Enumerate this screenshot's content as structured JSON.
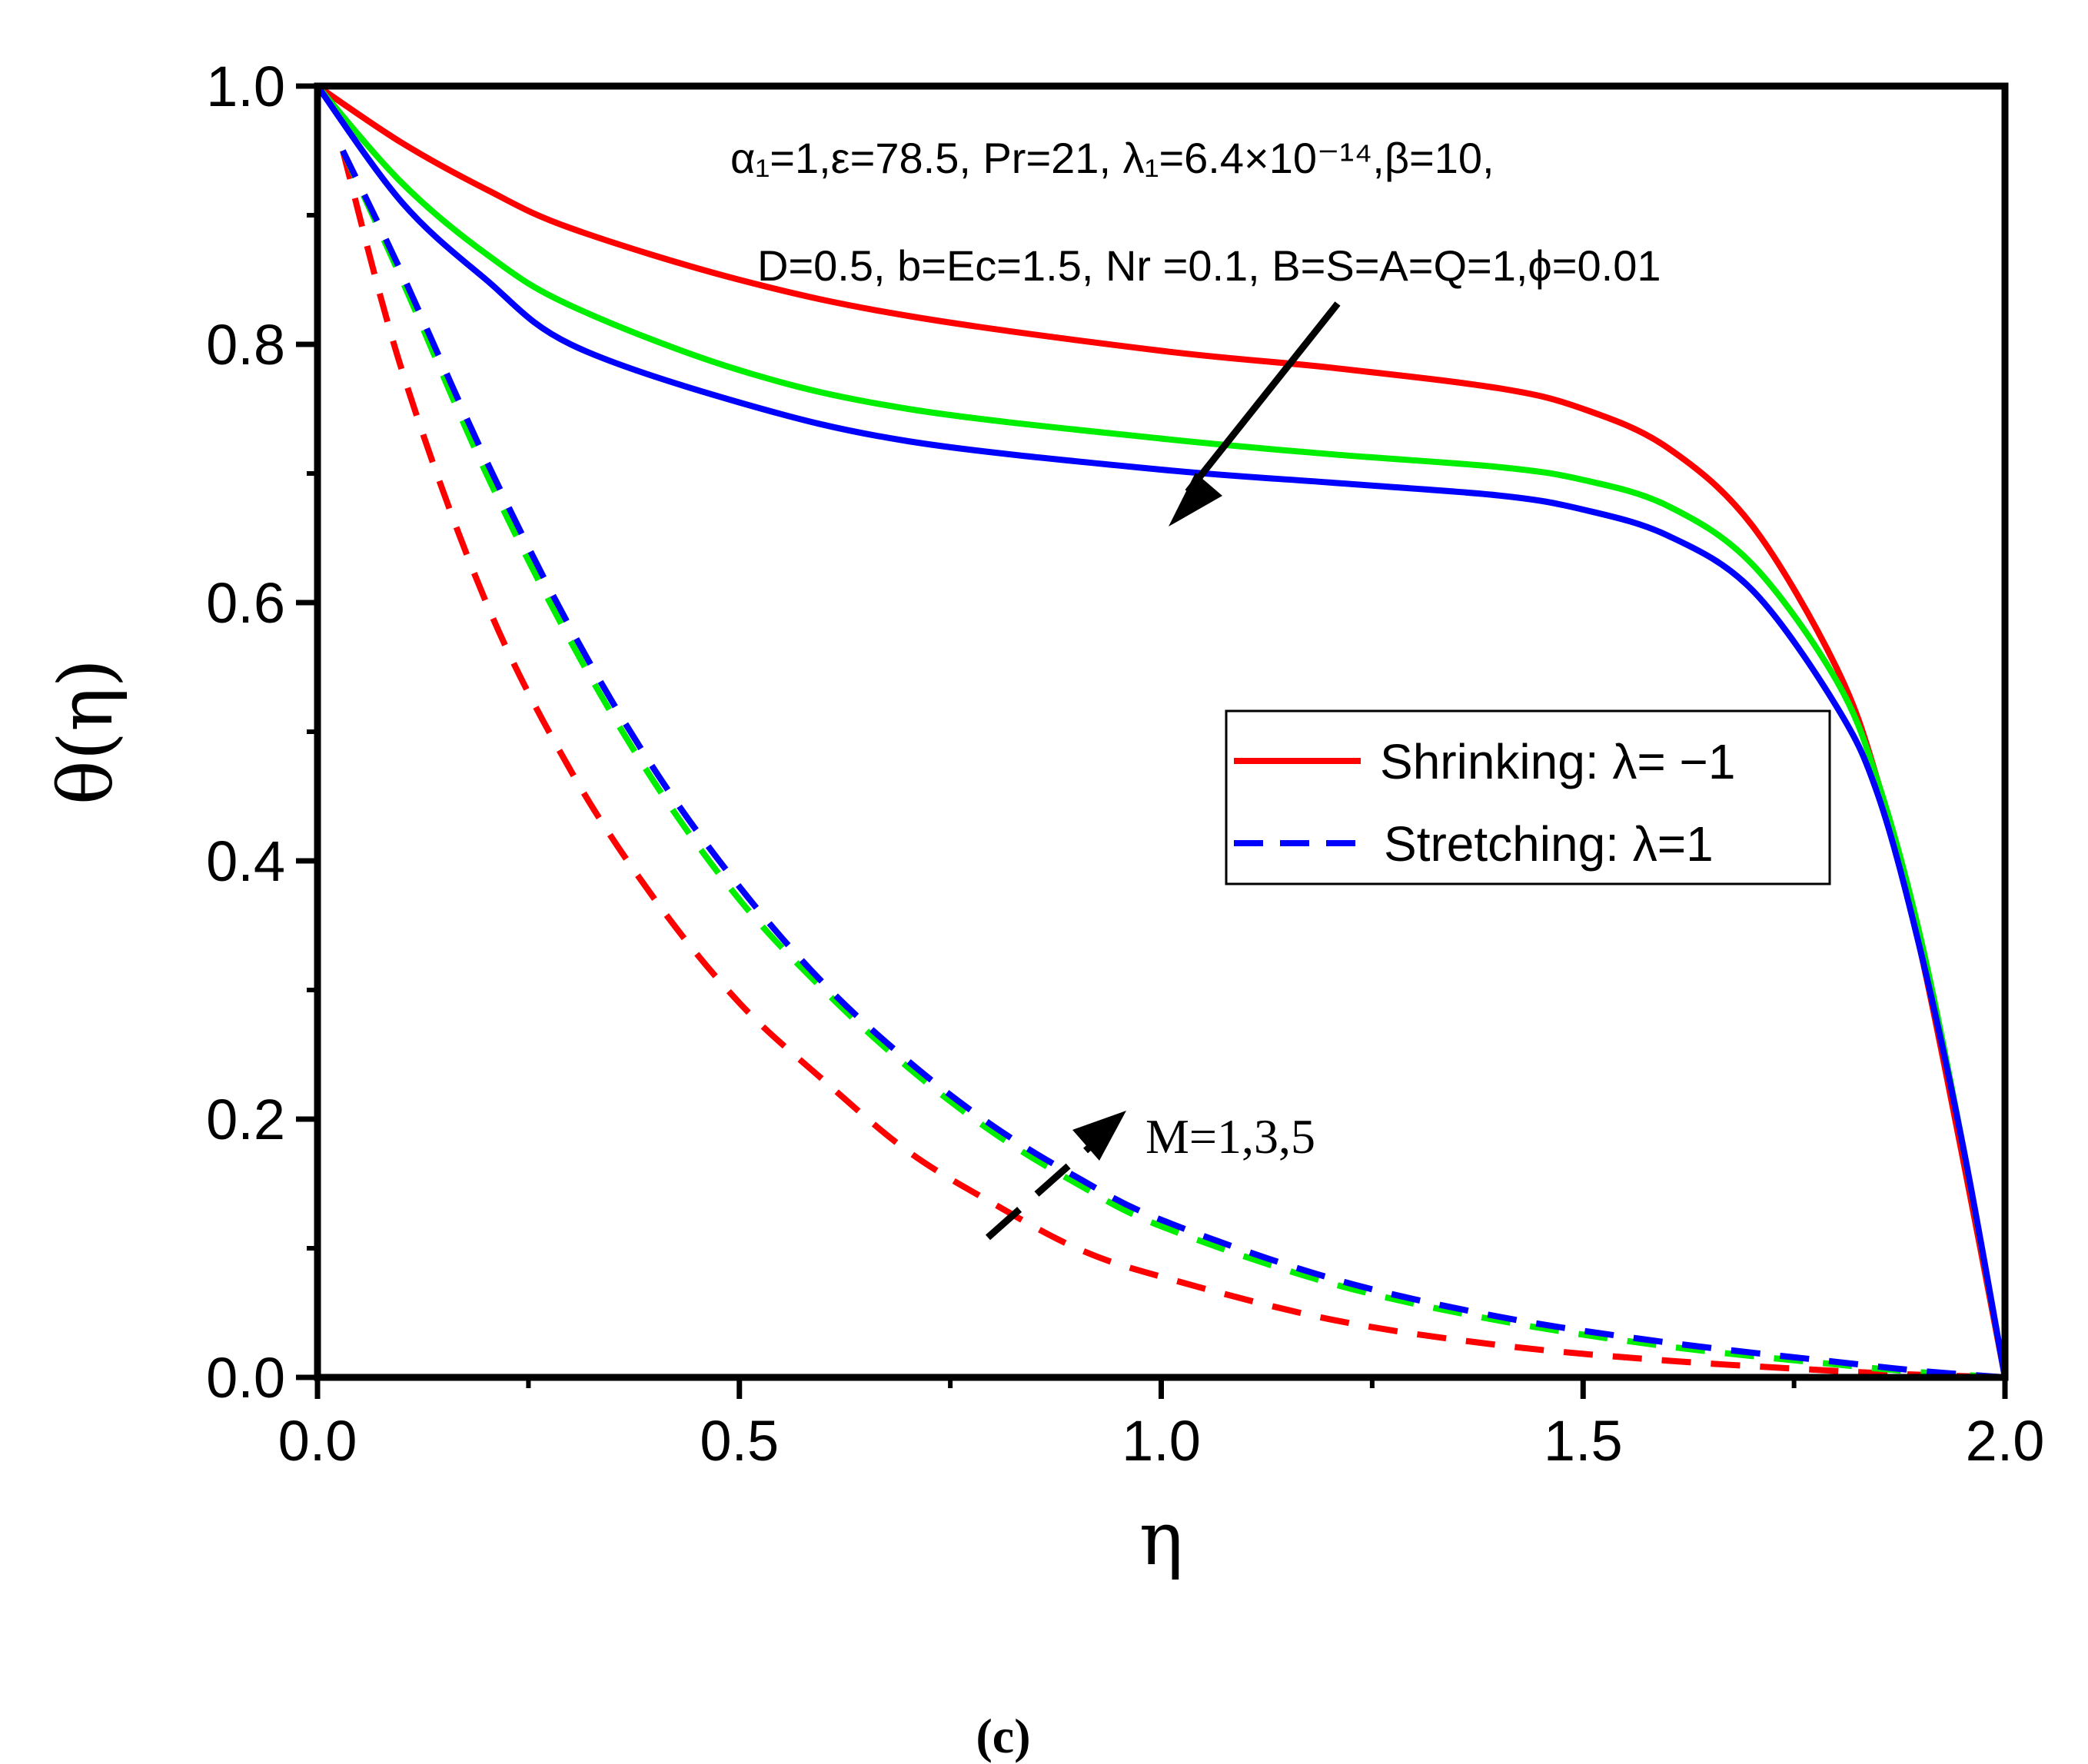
{
  "chart_data": {
    "type": "line",
    "xlabel": "η",
    "ylabel": "θ(η)",
    "xlim": [
      0.0,
      2.0
    ],
    "ylim": [
      0.0,
      1.0
    ],
    "xticks": [
      "0.0",
      "0.5",
      "1.0",
      "1.5",
      "2.0"
    ],
    "yticks": [
      "0.0",
      "0.2",
      "0.4",
      "0.6",
      "0.8",
      "1.0"
    ],
    "xtick_values": [
      0.0,
      0.5,
      1.0,
      1.5,
      2.0
    ],
    "ytick_values": [
      0.0,
      0.2,
      0.4,
      0.6,
      0.8,
      1.0
    ],
    "x_minor_step": 0.25,
    "y_minor_step": 0.1,
    "grid": false,
    "parameter_text_line1": "α₁=1,ε=78.5, Pr=21, λ₁=6.4×10⁻¹⁴,β=10,",
    "parameter_text_line2": "D=0.5, b=Ec=1.5, Nr =0.1, B=S=A=Q=1,ϕ=0.01",
    "m_label": "M=1,3,5",
    "panel_label": "(c)",
    "legend": [
      {
        "label": "Shrinking: λ= −1",
        "style": "solid",
        "color": "#ff0000"
      },
      {
        "label": "Stretching: λ=1",
        "style": "dashed",
        "color": "#0000ff"
      }
    ],
    "series": [
      {
        "name": "Shrinking M=1",
        "style": "solid",
        "color": "#ff0000",
        "x": [
          0,
          0.1,
          0.2,
          0.3,
          0.5,
          0.7,
          1.0,
          1.2,
          1.4,
          1.5,
          1.6,
          1.7,
          1.8,
          1.85,
          1.9,
          1.95,
          2.0
        ],
        "y": [
          1.0,
          0.956,
          0.92,
          0.89,
          0.85,
          0.822,
          0.795,
          0.782,
          0.766,
          0.75,
          0.72,
          0.66,
          0.55,
          0.46,
          0.33,
          0.17,
          0.0
        ]
      },
      {
        "name": "Shrinking M=3",
        "style": "solid",
        "color": "#00ee00",
        "x": [
          0,
          0.1,
          0.2,
          0.3,
          0.5,
          0.7,
          1.0,
          1.2,
          1.4,
          1.5,
          1.6,
          1.7,
          1.8,
          1.85,
          1.9,
          1.95,
          2.0
        ],
        "y": [
          1.0,
          0.925,
          0.87,
          0.83,
          0.78,
          0.75,
          0.727,
          0.715,
          0.705,
          0.695,
          0.675,
          0.63,
          0.54,
          0.46,
          0.34,
          0.18,
          0.0
        ]
      },
      {
        "name": "Shrinking M=5",
        "style": "solid",
        "color": "#0000ff",
        "x": [
          0,
          0.1,
          0.2,
          0.3,
          0.5,
          0.7,
          1.0,
          1.2,
          1.4,
          1.5,
          1.6,
          1.7,
          1.8,
          1.85,
          1.9,
          1.95,
          2.0
        ],
        "y": [
          1.0,
          0.91,
          0.85,
          0.8,
          0.755,
          0.725,
          0.703,
          0.693,
          0.683,
          0.672,
          0.652,
          0.61,
          0.52,
          0.45,
          0.33,
          0.18,
          0.0
        ]
      },
      {
        "name": "Stretching M=1",
        "style": "dashed",
        "color": "#ff0000",
        "x": [
          0.03,
          0.1,
          0.2,
          0.3,
          0.4,
          0.5,
          0.6,
          0.7,
          0.8,
          0.9,
          1.0,
          1.2,
          1.4,
          1.6,
          1.8,
          1.9,
          2.0
        ],
        "y": [
          0.95,
          0.78,
          0.6,
          0.47,
          0.37,
          0.29,
          0.23,
          0.175,
          0.135,
          0.1,
          0.078,
          0.045,
          0.025,
          0.013,
          0.005,
          0.002,
          0.0
        ]
      },
      {
        "name": "Stretching M=3",
        "style": "dashed",
        "color": "#00ee00",
        "x": [
          0.03,
          0.1,
          0.2,
          0.3,
          0.4,
          0.5,
          0.6,
          0.7,
          0.8,
          0.9,
          1.0,
          1.2,
          1.4,
          1.6,
          1.8,
          1.9,
          2.0
        ],
        "y": [
          0.95,
          0.85,
          0.7,
          0.57,
          0.46,
          0.37,
          0.3,
          0.24,
          0.19,
          0.15,
          0.117,
          0.073,
          0.044,
          0.024,
          0.01,
          0.004,
          0.0
        ]
      },
      {
        "name": "Stretching M=5",
        "style": "dashed",
        "color": "#0000ff",
        "x": [
          0.03,
          0.1,
          0.2,
          0.3,
          0.4,
          0.5,
          0.6,
          0.7,
          0.8,
          0.9,
          1.0,
          1.2,
          1.4,
          1.6,
          1.8,
          1.9,
          2.0
        ],
        "y": [
          0.95,
          0.855,
          0.71,
          0.58,
          0.47,
          0.38,
          0.305,
          0.245,
          0.195,
          0.155,
          0.122,
          0.077,
          0.047,
          0.027,
          0.012,
          0.005,
          0.0
        ]
      }
    ]
  }
}
